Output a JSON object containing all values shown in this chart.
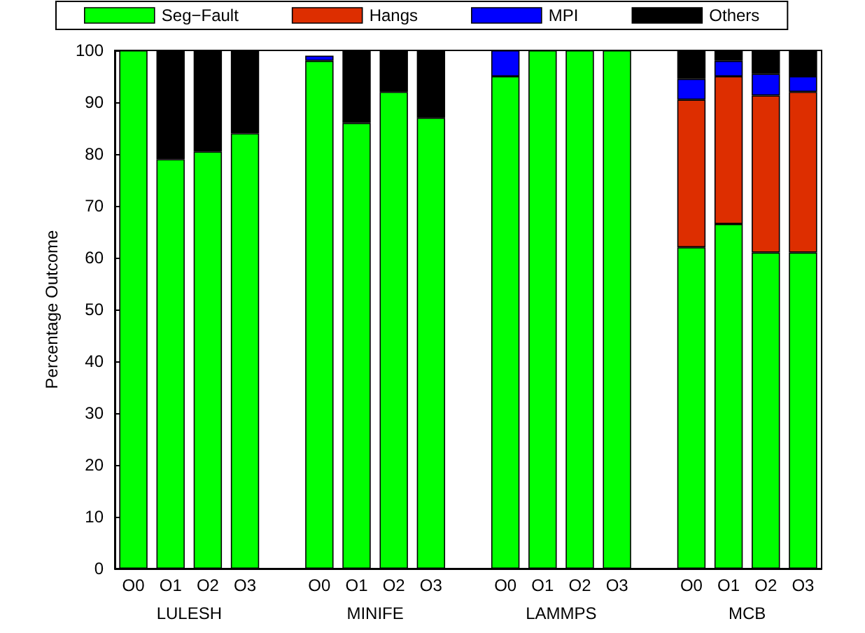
{
  "chart_data": {
    "type": "bar",
    "stacked": true,
    "ylabel": "Percentage Outcome",
    "categories": [
      "O0",
      "O1",
      "O2",
      "O3",
      null,
      "O0",
      "O1",
      "O2",
      "O3",
      null,
      "O0",
      "O1",
      "O2",
      "O3",
      null,
      "O0",
      "O1",
      "O2",
      "O3"
    ],
    "series": [
      {
        "name": "Seg−Fault",
        "color": "#00ff00",
        "values": [
          100,
          79,
          80.5,
          84,
          null,
          98,
          86,
          92,
          87,
          null,
          95,
          100,
          100,
          100,
          null,
          62,
          66.5,
          61,
          61
        ]
      },
      {
        "name": "Hangs",
        "color": "#dd2e00",
        "values": [
          null,
          null,
          null,
          null,
          null,
          null,
          null,
          null,
          null,
          null,
          null,
          null,
          null,
          null,
          null,
          28.5,
          28.5,
          30.3,
          31
        ]
      },
      {
        "name": "MPI",
        "color": "#0000ff",
        "values": [
          null,
          null,
          null,
          null,
          null,
          1,
          null,
          null,
          null,
          null,
          5,
          null,
          null,
          null,
          null,
          4,
          3,
          4.2,
          3
        ]
      },
      {
        "name": "Others",
        "color": "#000000",
        "values": [
          null,
          21,
          19.5,
          16,
          null,
          null,
          14,
          8,
          13,
          null,
          null,
          null,
          null,
          null,
          null,
          5.5,
          2,
          4.5,
          5
        ]
      }
    ],
    "ylim": [
      0,
      100
    ],
    "yticks": [
      0,
      10,
      20,
      30,
      40,
      50,
      60,
      70,
      80,
      90,
      100
    ],
    "grid": false,
    "legend": "top",
    "annotations": [
      "LULESH",
      "MINIFE",
      "LAMMPS",
      "MCB"
    ]
  }
}
